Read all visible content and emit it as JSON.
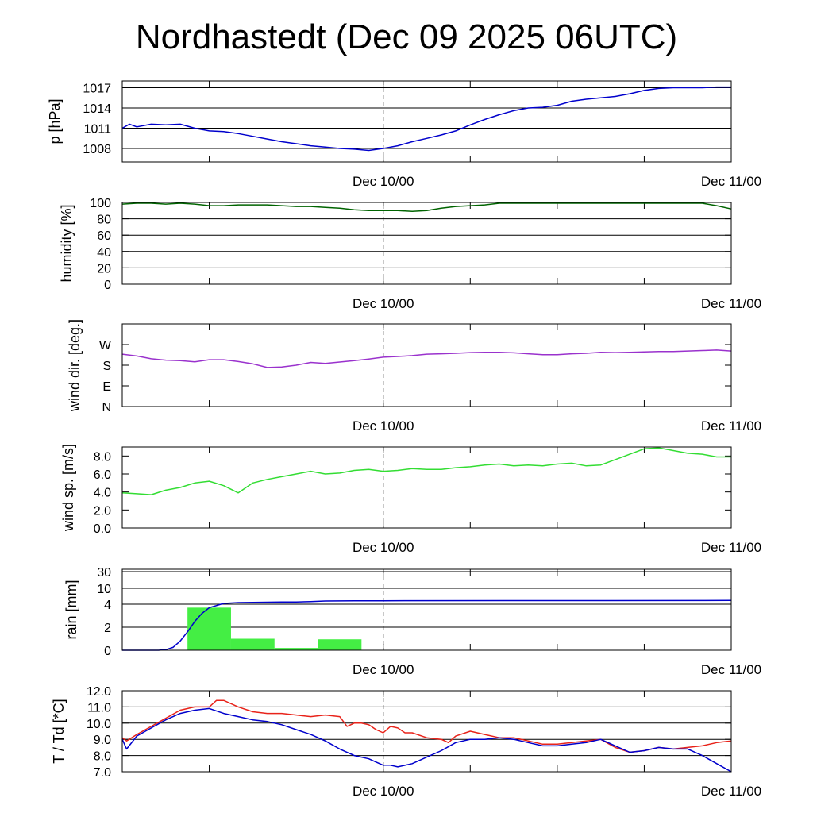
{
  "title": "Nordhastedt (Dec 09 2025 06UTC)",
  "x_axis": {
    "unit": "hours since Dec 09 2025 06UTC",
    "range": [
      0,
      42
    ],
    "minor_ticks": [
      6,
      18,
      24,
      30,
      36
    ],
    "date_labels": [
      {
        "hour": 18,
        "text": "Dec 10/00"
      },
      {
        "hour": 42,
        "text": "Dec 11/00"
      }
    ],
    "dashed_marker_hour": 18
  },
  "colors": {
    "pressure": "#0000cc",
    "humidity": "#006400",
    "wind_dir": "#9a32cd",
    "wind_speed": "#33dd33",
    "rain_bar": "#44ee44",
    "rain_cum": "#0000cc",
    "temperature": "#e8231a",
    "dewpoint": "#0000cc"
  },
  "chart_data": [
    {
      "type": "line",
      "ylabel": "p [hPa]",
      "ylim": [
        1006,
        1018
      ],
      "yticks": [
        1008,
        1011,
        1014,
        1017
      ],
      "ytick_labels": [
        "1008",
        "1011",
        "1014",
        "1017"
      ],
      "grid": true,
      "series": [
        {
          "key": "pressure",
          "x": [
            0,
            0.5,
            1,
            2,
            3,
            4,
            5,
            6,
            7,
            8,
            9,
            10,
            11,
            12,
            13,
            14,
            15,
            16,
            17,
            18,
            19,
            20,
            21,
            22,
            23,
            24,
            25,
            26,
            27,
            28,
            29,
            30,
            31,
            32,
            33,
            34,
            35,
            36,
            37,
            38,
            39,
            40,
            41,
            42
          ],
          "y": [
            1011.0,
            1011.6,
            1011.2,
            1011.6,
            1011.5,
            1011.6,
            1011.0,
            1010.6,
            1010.5,
            1010.2,
            1009.8,
            1009.4,
            1009.0,
            1008.7,
            1008.4,
            1008.2,
            1008.0,
            1007.9,
            1007.7,
            1008.0,
            1008.4,
            1009.0,
            1009.5,
            1010.0,
            1010.6,
            1011.5,
            1012.3,
            1013.0,
            1013.6,
            1014.0,
            1014.1,
            1014.4,
            1015.0,
            1015.3,
            1015.5,
            1015.7,
            1016.1,
            1016.6,
            1016.9,
            1017.0,
            1017.0,
            1017.0,
            1017.1,
            1017.1
          ]
        }
      ]
    },
    {
      "type": "line",
      "ylabel": "humidity [%]",
      "ylim": [
        0,
        100
      ],
      "yticks": [
        0,
        20,
        40,
        60,
        80,
        100
      ],
      "ytick_labels": [
        "0",
        "20",
        "40",
        "60",
        "80",
        "100"
      ],
      "grid": true,
      "series": [
        {
          "key": "humidity",
          "x": [
            0,
            1,
            2,
            3,
            4,
            5,
            6,
            7,
            8,
            9,
            10,
            11,
            12,
            13,
            14,
            15,
            16,
            17,
            18,
            19,
            20,
            21,
            22,
            23,
            24,
            25,
            26,
            27,
            28,
            29,
            30,
            31,
            32,
            33,
            34,
            35,
            36,
            37,
            38,
            39,
            40,
            41,
            42
          ],
          "y": [
            98,
            99,
            99,
            98,
            99,
            98,
            96,
            96,
            97,
            97,
            97,
            96,
            95,
            95,
            94,
            93,
            91,
            90,
            90,
            90,
            89,
            90,
            93,
            95,
            96,
            97,
            99,
            99,
            99,
            99,
            99,
            99,
            99,
            99,
            99,
            99,
            99,
            99,
            99,
            99,
            99,
            96,
            92
          ]
        }
      ]
    },
    {
      "type": "line",
      "ylabel": "wind dir. [deg.]",
      "ylim": [
        0,
        360
      ],
      "yticks": [
        0,
        90,
        180,
        270
      ],
      "ytick_labels": [
        "N",
        "E",
        "S",
        "W"
      ],
      "grid": false,
      "series": [
        {
          "key": "wind_dir",
          "x": [
            0,
            1,
            2,
            3,
            4,
            5,
            6,
            7,
            8,
            9,
            10,
            11,
            12,
            13,
            14,
            15,
            16,
            17,
            18,
            19,
            20,
            21,
            22,
            23,
            24,
            25,
            26,
            27,
            28,
            29,
            30,
            31,
            32,
            33,
            34,
            35,
            36,
            37,
            38,
            39,
            40,
            41,
            42
          ],
          "y": [
            228,
            220,
            208,
            202,
            200,
            195,
            204,
            204,
            196,
            186,
            170,
            172,
            180,
            192,
            188,
            194,
            200,
            207,
            215,
            218,
            222,
            228,
            230,
            232,
            235,
            236,
            236,
            234,
            230,
            226,
            226,
            230,
            232,
            236,
            235,
            236,
            238,
            240,
            240,
            242,
            244,
            246,
            242
          ]
        }
      ]
    },
    {
      "type": "line",
      "ylabel": "wind sp. [m/s]",
      "ylim": [
        0,
        9
      ],
      "yticks": [
        0,
        2,
        4,
        6,
        8
      ],
      "ytick_labels": [
        "0.0",
        "2.0",
        "4.0",
        "6.0",
        "8.0"
      ],
      "grid": false,
      "series": [
        {
          "key": "wind_speed",
          "x": [
            0,
            1,
            2,
            3,
            4,
            5,
            6,
            7,
            8,
            9,
            10,
            11,
            12,
            13,
            14,
            15,
            16,
            17,
            18,
            19,
            20,
            21,
            22,
            23,
            24,
            25,
            26,
            27,
            28,
            29,
            30,
            31,
            32,
            33,
            34,
            35,
            36,
            37,
            38,
            39,
            40,
            41,
            42
          ],
          "y": [
            3.9,
            3.8,
            3.7,
            4.2,
            4.5,
            5.0,
            5.2,
            4.7,
            3.9,
            5.0,
            5.4,
            5.7,
            6.0,
            6.3,
            6.0,
            6.1,
            6.4,
            6.5,
            6.3,
            6.4,
            6.6,
            6.5,
            6.5,
            6.7,
            6.8,
            7.0,
            7.1,
            6.9,
            7.0,
            6.9,
            7.1,
            7.2,
            6.9,
            7.0,
            7.6,
            8.2,
            8.8,
            8.9,
            8.6,
            8.3,
            8.2,
            7.9,
            7.9
          ]
        }
      ]
    },
    {
      "type": "bar",
      "ylabel": "rain [mm]",
      "ylim": [
        0,
        30
      ],
      "yticks": [
        0,
        2,
        4,
        10,
        30
      ],
      "ytick_labels": [
        "0",
        "2",
        "4",
        "10",
        "30"
      ],
      "grid": true,
      "scale": "piecewise",
      "bars": [
        {
          "x0": 4.5,
          "x1": 7.5,
          "value": 3.7
        },
        {
          "x0": 7.5,
          "x1": 10.5,
          "value": 1.0
        },
        {
          "x0": 10.5,
          "x1": 13.5,
          "value": 0.2
        },
        {
          "x0": 13.5,
          "x1": 16.5,
          "value": 0.95
        }
      ],
      "series": [
        {
          "key": "rain_cum",
          "x": [
            0,
            2.5,
            3,
            3.5,
            4,
            4.5,
            5,
            5.5,
            6,
            7,
            8,
            9,
            10,
            11,
            12,
            13,
            14,
            16,
            18,
            42
          ],
          "y": [
            0,
            0,
            0.05,
            0.25,
            0.8,
            1.6,
            2.5,
            3.2,
            3.7,
            4.3,
            4.6,
            4.7,
            4.75,
            4.8,
            4.85,
            5.0,
            5.2,
            5.3,
            5.3,
            5.4
          ]
        }
      ]
    },
    {
      "type": "line",
      "ylabel": "T / Td [*C]",
      "ylim": [
        7,
        12
      ],
      "yticks": [
        7,
        8,
        9,
        10,
        11,
        12
      ],
      "ytick_labels": [
        "7.0",
        "8.0",
        "9.0",
        "10.0",
        "11.0",
        "12.0"
      ],
      "grid": true,
      "series": [
        {
          "key": "temperature",
          "x": [
            0,
            0.3,
            1,
            2,
            3,
            4,
            5,
            6,
            6.5,
            7,
            8,
            9,
            10,
            11,
            12,
            13,
            14,
            15,
            15.5,
            16,
            16.5,
            17,
            17.5,
            18,
            18.5,
            19,
            19.5,
            20,
            21,
            22,
            22.5,
            23,
            24,
            25,
            26,
            27,
            28,
            29,
            30,
            31,
            32,
            33,
            34,
            35,
            36,
            37,
            38,
            39,
            40,
            41,
            42
          ],
          "y": [
            9.1,
            8.9,
            9.3,
            9.8,
            10.3,
            10.8,
            11.0,
            11.0,
            11.4,
            11.4,
            11.0,
            10.7,
            10.6,
            10.6,
            10.5,
            10.4,
            10.5,
            10.4,
            9.8,
            10.0,
            10.0,
            9.9,
            9.6,
            9.4,
            9.8,
            9.7,
            9.4,
            9.4,
            9.1,
            9.0,
            8.8,
            9.2,
            9.5,
            9.3,
            9.1,
            9.1,
            8.9,
            8.7,
            8.7,
            8.8,
            8.9,
            9.0,
            8.5,
            8.2,
            8.3,
            8.5,
            8.4,
            8.5,
            8.6,
            8.8,
            8.9
          ]
        },
        {
          "key": "dewpoint",
          "x": [
            0,
            0.3,
            1,
            2,
            3,
            4,
            5,
            6,
            7,
            8,
            9,
            10,
            11,
            12,
            13,
            14,
            15,
            16,
            17,
            17.5,
            18,
            18.5,
            19,
            20,
            21,
            22,
            23,
            24,
            25,
            26,
            27,
            28,
            29,
            30,
            31,
            32,
            33,
            34,
            35,
            36,
            37,
            38,
            39,
            40,
            41,
            42
          ],
          "y": [
            9.0,
            8.4,
            9.2,
            9.7,
            10.2,
            10.6,
            10.8,
            10.9,
            10.6,
            10.4,
            10.2,
            10.1,
            9.9,
            9.6,
            9.3,
            8.9,
            8.4,
            8.0,
            7.8,
            7.6,
            7.4,
            7.4,
            7.3,
            7.5,
            7.9,
            8.3,
            8.8,
            9.0,
            9.0,
            9.1,
            9.0,
            8.8,
            8.6,
            8.6,
            8.7,
            8.8,
            9.0,
            8.6,
            8.2,
            8.3,
            8.5,
            8.4,
            8.4,
            8.0,
            7.5,
            7.0
          ]
        }
      ]
    }
  ]
}
